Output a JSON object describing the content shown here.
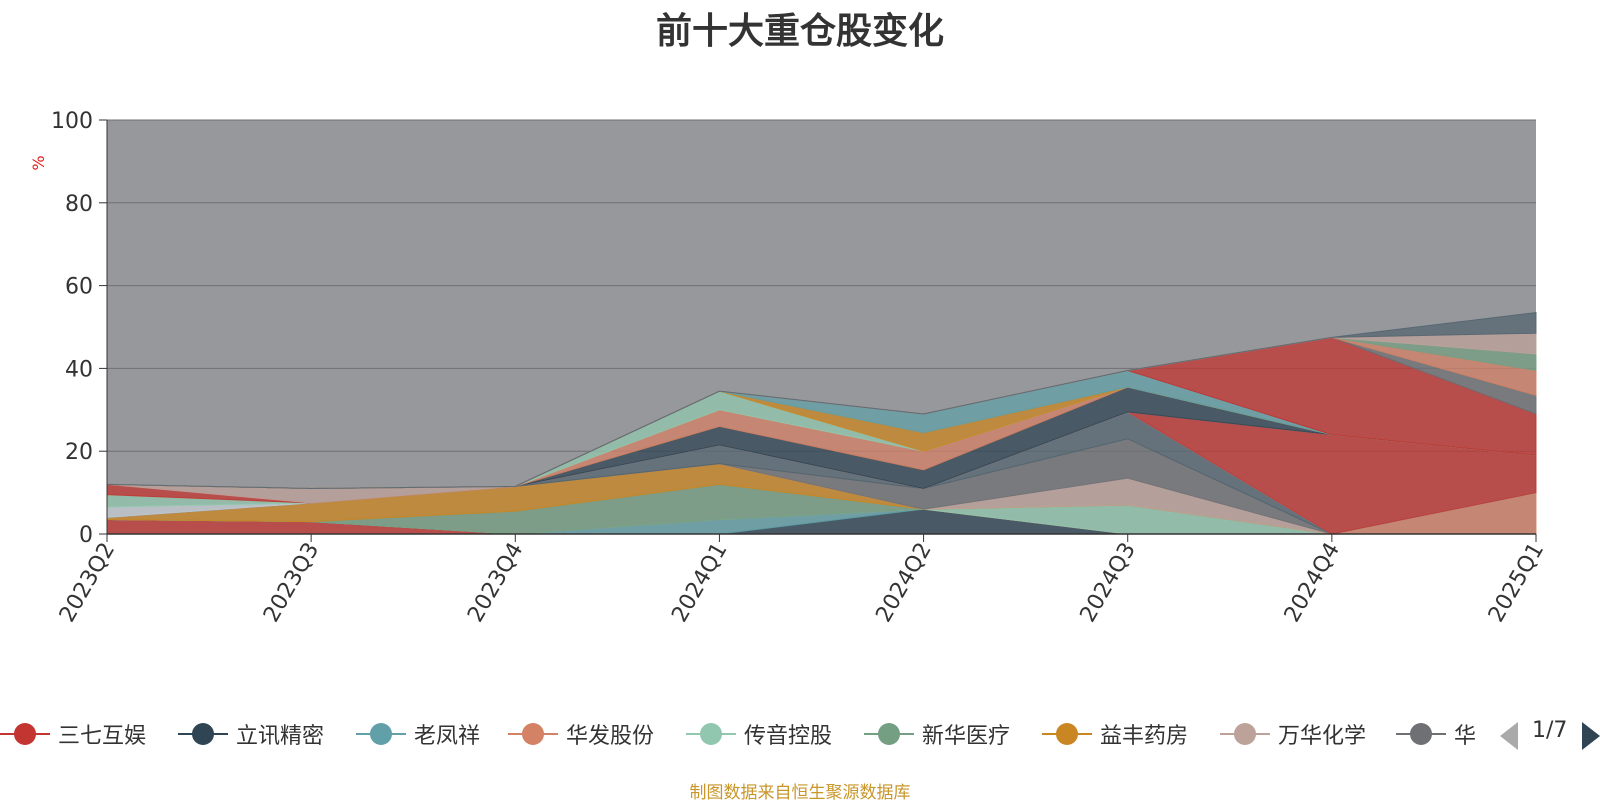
{
  "title": "前十大重仓股变化",
  "source_note": "制图数据来自恒生聚源数据库",
  "legend_pager": "1/7",
  "chart_data": {
    "type": "area",
    "stacked": true,
    "title": "前十大重仓股变化",
    "ylabel": "%",
    "ylim": [
      0,
      100
    ],
    "yticks": [
      "0",
      "20",
      "40",
      "60",
      "80",
      "100"
    ],
    "grid": true,
    "legend_position": "bottom",
    "plot_background": "#97989c",
    "x": [
      "2023Q2",
      "2023Q3",
      "2023Q4",
      "2024Q1",
      "2024Q2",
      "2024Q3",
      "2024Q4",
      "2025Q1"
    ],
    "series": [
      {
        "name": "三七互娱",
        "color": "#c23531",
        "values": [
          3.5,
          3,
          0,
          0,
          0,
          0,
          0,
          0
        ]
      },
      {
        "name": "立讯精密",
        "color": "#2f4554",
        "values": [
          0,
          0,
          0,
          0,
          6,
          0,
          0,
          0
        ]
      },
      {
        "name": "老凤祥",
        "color": "#61a0a8",
        "values": [
          0,
          0,
          0,
          3.5,
          0,
          0,
          0,
          0
        ]
      },
      {
        "name": "华发股份",
        "color": "#d48265",
        "values": [
          0,
          0,
          0,
          0,
          0,
          0,
          0,
          10
        ]
      },
      {
        "name": "传音控股",
        "color": "#91c7ae",
        "values": [
          0,
          0,
          0,
          0,
          0,
          7,
          0,
          0
        ]
      },
      {
        "name": "新华医疗",
        "color": "#749f83",
        "values": [
          0,
          0,
          5.5,
          8.5,
          0,
          0,
          0,
          0
        ]
      },
      {
        "name": "益丰药房",
        "color": "#ca8622",
        "values": [
          0.5,
          4.5,
          6,
          5,
          0,
          0,
          0,
          0
        ]
      },
      {
        "name": "万华化学",
        "color": "#bda29a",
        "values": [
          0,
          0,
          0,
          0,
          0,
          6.5,
          0,
          0
        ]
      },
      {
        "name": "",
        "color": "#6e7074",
        "values": [
          0,
          0,
          0,
          0,
          5,
          9.5,
          0,
          0
        ]
      },
      {
        "name": "",
        "color": "#546570",
        "values": [
          0,
          0,
          0,
          4.5,
          0,
          6.5,
          0,
          0
        ]
      },
      {
        "name": "",
        "color": "#c4ccd3",
        "values": [
          2.5,
          0,
          0,
          0,
          0,
          0,
          0,
          0
        ]
      },
      {
        "name": "",
        "color": "#91c7ae",
        "values": [
          3,
          0,
          0,
          0,
          0,
          0,
          0,
          0
        ]
      },
      {
        "name": "",
        "color": "#c23531",
        "values": [
          2.5,
          0,
          0,
          0,
          0,
          0,
          24,
          9
        ]
      },
      {
        "name": "",
        "color": "#bda29a",
        "values": [
          0,
          3.5,
          0,
          0,
          0,
          0,
          0,
          0
        ]
      },
      {
        "name": "",
        "color": "#2f4554",
        "values": [
          0,
          0,
          0,
          4.5,
          4.5,
          6,
          0,
          0
        ]
      },
      {
        "name": "",
        "color": "#d48265",
        "values": [
          0,
          0,
          0,
          4,
          4.5,
          0,
          0,
          0
        ]
      },
      {
        "name": "",
        "color": "#91c7ae",
        "values": [
          0,
          0,
          0,
          4.5,
          0,
          0,
          0,
          0
        ]
      },
      {
        "name": "",
        "color": "#ca8622",
        "values": [
          0,
          0,
          0,
          0,
          4.5,
          0,
          0,
          0
        ]
      },
      {
        "name": "",
        "color": "#61a0a8",
        "values": [
          0,
          0,
          0,
          0,
          4.5,
          4,
          0,
          0
        ]
      },
      {
        "name": "",
        "color": "#c23531",
        "values": [
          0,
          0,
          0,
          0,
          0,
          0,
          23.5,
          10
        ]
      },
      {
        "name": "",
        "color": "#6e7074",
        "values": [
          0,
          0,
          0,
          0,
          0,
          0,
          0,
          4.5
        ]
      },
      {
        "name": "",
        "color": "#d48265",
        "values": [
          0,
          0,
          0,
          0,
          0,
          0,
          0,
          6
        ]
      },
      {
        "name": "",
        "color": "#749f83",
        "values": [
          0,
          0,
          0,
          0,
          0,
          0,
          0,
          4
        ]
      },
      {
        "name": "",
        "color": "#bda29a",
        "values": [
          0,
          0,
          0,
          0,
          0,
          0,
          0,
          5
        ]
      },
      {
        "name": "",
        "color": "#546570",
        "values": [
          0,
          0,
          0,
          0,
          0,
          0,
          0,
          5
        ]
      }
    ]
  },
  "legend": [
    {
      "label": "三七互娱",
      "color": "#c23531"
    },
    {
      "label": "立讯精密",
      "color": "#2f4554"
    },
    {
      "label": "老凤祥",
      "color": "#61a0a8"
    },
    {
      "label": "华发股份",
      "color": "#d48265"
    },
    {
      "label": "传音控股",
      "color": "#91c7ae"
    },
    {
      "label": "新华医疗",
      "color": "#749f83"
    },
    {
      "label": "益丰药房",
      "color": "#ca8622"
    },
    {
      "label": "万华化学",
      "color": "#bda29a"
    },
    {
      "label": "华",
      "color": "#6e7074"
    }
  ]
}
